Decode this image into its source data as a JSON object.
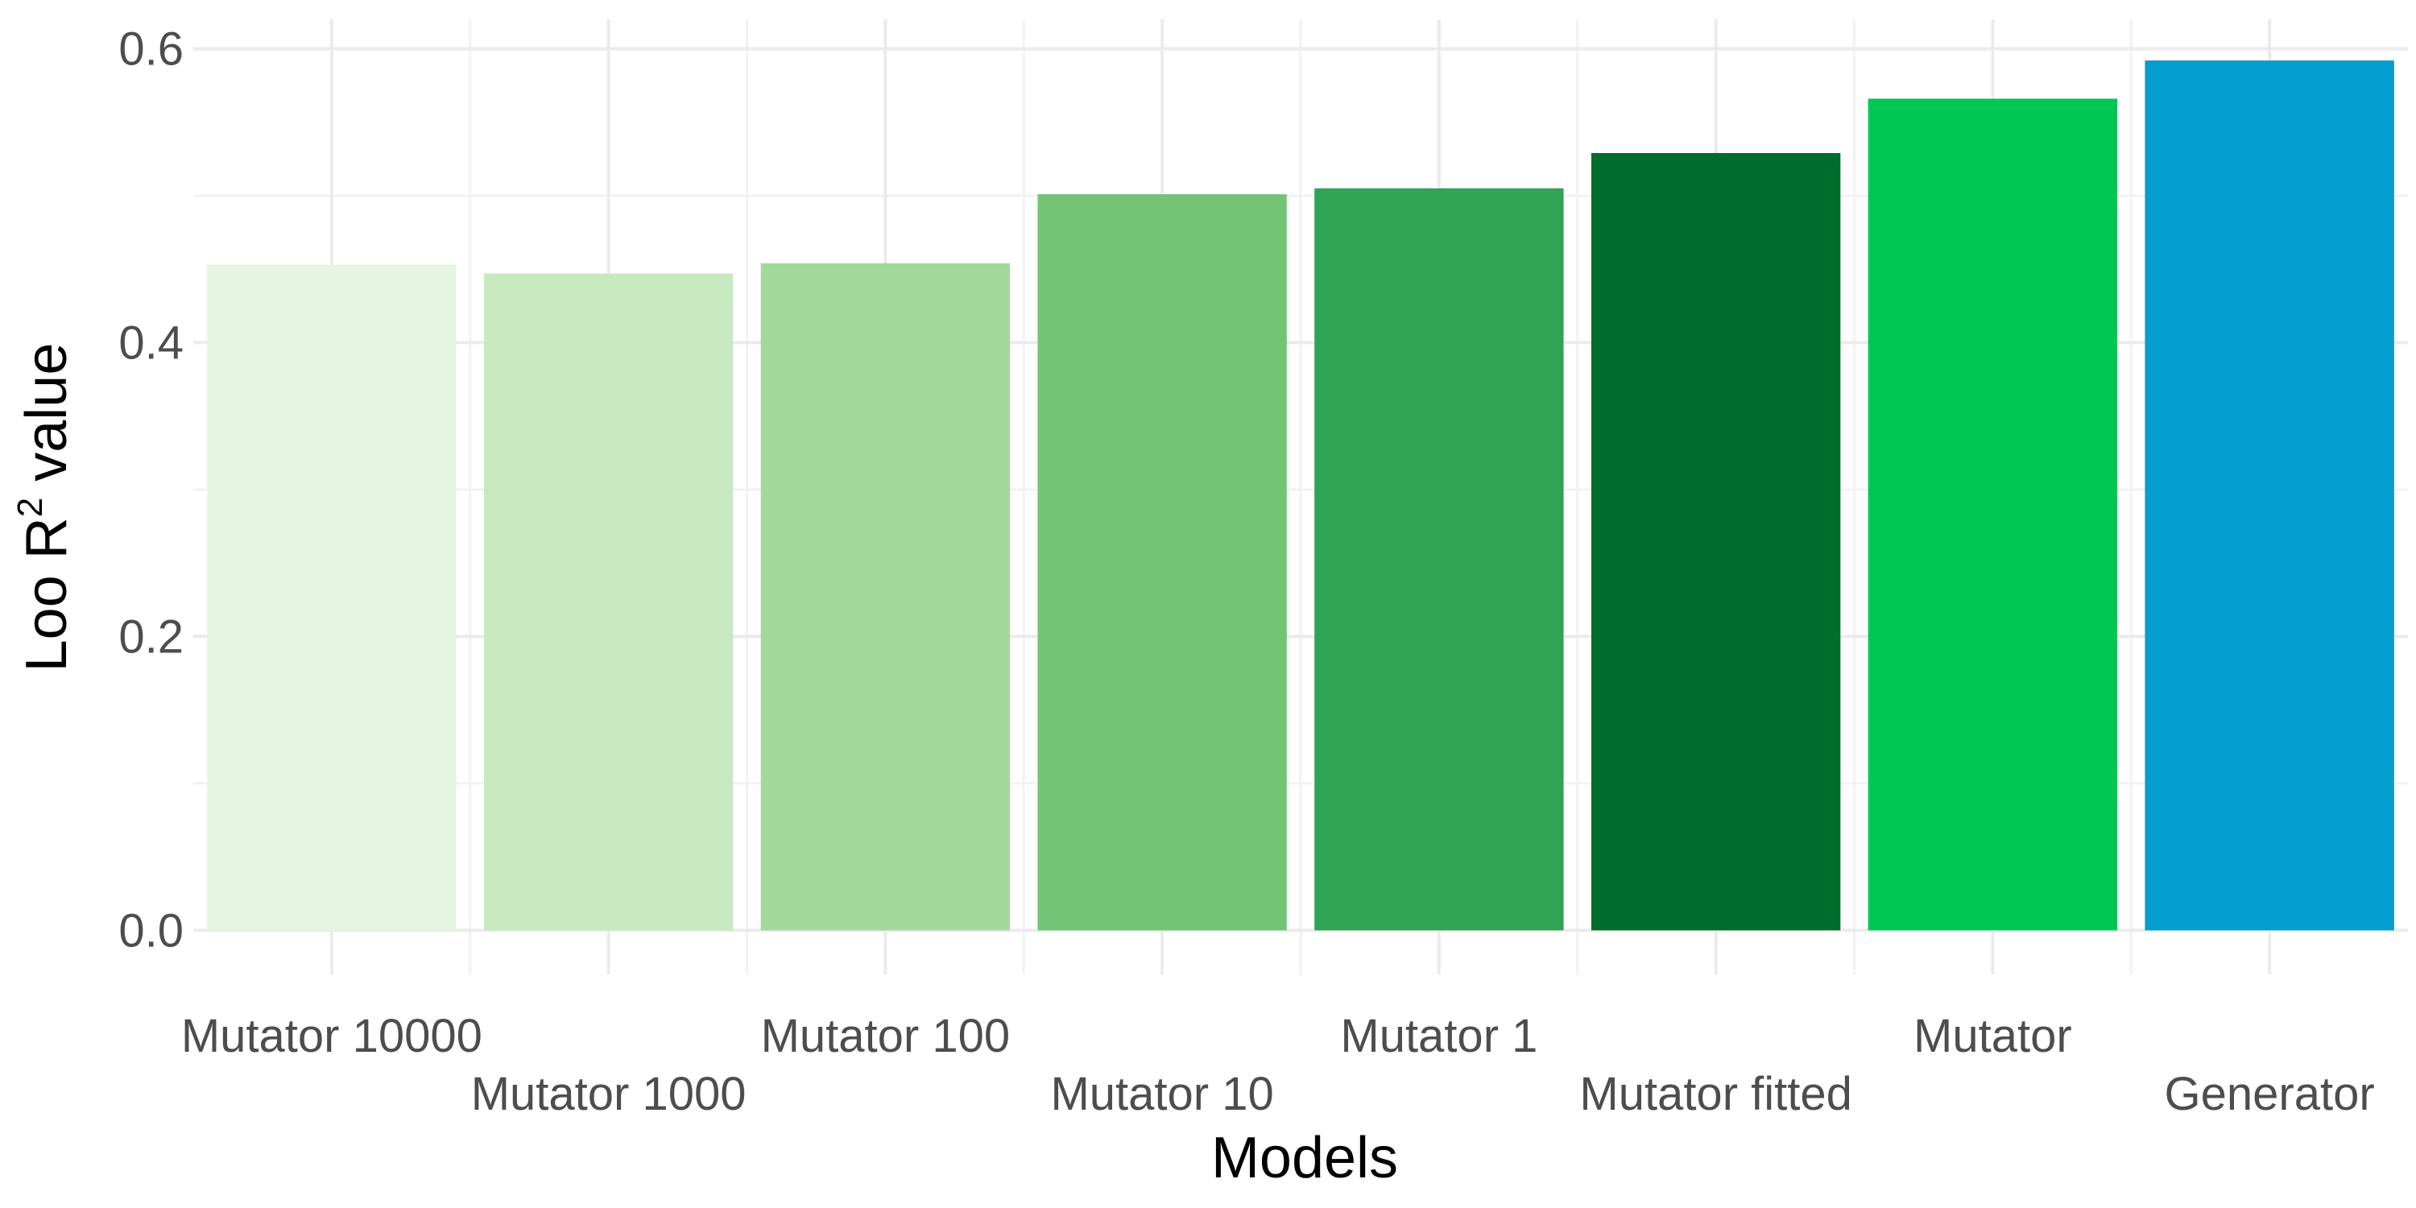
{
  "chart_data": {
    "type": "bar",
    "categories": [
      "Mutator 10000",
      "Mutator 1000",
      "Mutator 100",
      "Mutator 10",
      "Mutator 1",
      "Mutator fitted",
      "Mutator",
      "Generator"
    ],
    "values": [
      0.453,
      0.447,
      0.454,
      0.501,
      0.505,
      0.529,
      0.566,
      0.592
    ],
    "colors": [
      "#e5f5e0",
      "#c7e9c0",
      "#a1d99b",
      "#74c476",
      "#31a354",
      "#006d2c",
      "#00c853",
      "#069dcf"
    ],
    "xlabel": "Models",
    "ylabel": {
      "prefix": "Loo R",
      "superscript": "2",
      "suffix": " value"
    },
    "ylim": [
      -0.03,
      0.62
    ],
    "yticks": [
      0.0,
      0.2,
      0.4,
      0.6
    ],
    "ytick_labels": [
      "0.0",
      "0.2",
      "0.4",
      "0.6"
    ],
    "grid": true,
    "legend": "none"
  }
}
